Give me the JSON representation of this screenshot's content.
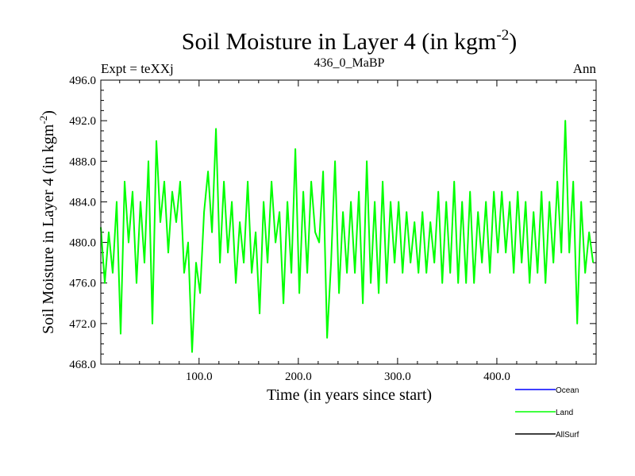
{
  "chart_data": {
    "type": "line",
    "title_main": "Soil Moisture in Layer 4 (in kgm",
    "title_sup": "-2",
    "title_close": ")",
    "subtitle_left": "Expt = teXXj",
    "subtitle_center": "436_0_MaBP",
    "subtitle_right": "Ann",
    "xlabel": "Time (in years since start)",
    "ylabel_main": "Soil Moisture in Layer 4 (in kgm",
    "ylabel_sup": "-2",
    "ylabel_close": ")",
    "xlim": [
      1,
      500
    ],
    "ylim": [
      468.0,
      496.0
    ],
    "xticks": [
      100,
      200,
      300,
      400
    ],
    "xtick_labels": [
      "100.0",
      "200.0",
      "300.0",
      "400.0"
    ],
    "yticks": [
      468,
      472,
      476,
      480,
      484,
      488,
      492,
      496
    ],
    "ytick_labels": [
      "468.0",
      "472.0",
      "476.0",
      "480.0",
      "484.0",
      "488.0",
      "492.0",
      "496.0"
    ],
    "legend": [
      {
        "name": "Ocean",
        "color": "#0000ff"
      },
      {
        "name": "Land",
        "color": "#00ff00"
      },
      {
        "name": "AllSurf",
        "color": "#000000"
      }
    ],
    "series": [
      {
        "name": "Land",
        "color": "#00ff00",
        "x_start": 1,
        "x_step": 4,
        "values": [
          481.5,
          476.0,
          481.0,
          477.0,
          484.0,
          471.0,
          486.0,
          480.0,
          485.0,
          476.0,
          484.0,
          478.0,
          488.0,
          472.0,
          490.0,
          482.0,
          486.0,
          479.0,
          485.0,
          482.0,
          486.0,
          477.0,
          480.0,
          469.2,
          478.0,
          475.0,
          483.0,
          487.0,
          481.0,
          491.2,
          478.0,
          486.0,
          479.0,
          484.0,
          476.0,
          482.0,
          478.0,
          486.0,
          477.0,
          481.0,
          473.0,
          484.0,
          478.0,
          486.0,
          480.0,
          483.0,
          474.0,
          484.0,
          477.0,
          489.2,
          475.0,
          485.0,
          477.0,
          486.0,
          481.0,
          480.0,
          487.0,
          470.6,
          478.0,
          488.0,
          475.0,
          483.0,
          477.0,
          484.0,
          477.0,
          485.0,
          474.0,
          488.0,
          476.0,
          484.0,
          475.0,
          486.0,
          476.0,
          484.0,
          478.0,
          484.0,
          477.0,
          483.0,
          478.0,
          482.0,
          477.0,
          483.0,
          477.0,
          482.0,
          478.0,
          485.0,
          476.0,
          484.0,
          477.0,
          486.0,
          476.0,
          484.0,
          476.0,
          485.0,
          476.0,
          483.0,
          478.0,
          484.0,
          477.0,
          485.0,
          479.0,
          485.0,
          479.0,
          484.0,
          477.0,
          485.0,
          478.0,
          484.0,
          476.0,
          483.0,
          477.0,
          485.0,
          476.0,
          484.0,
          478.0,
          486.0,
          479.0,
          492.0,
          479.0,
          486.0,
          472.0,
          484.0,
          477.0,
          481.0,
          478.0
        ]
      }
    ]
  }
}
